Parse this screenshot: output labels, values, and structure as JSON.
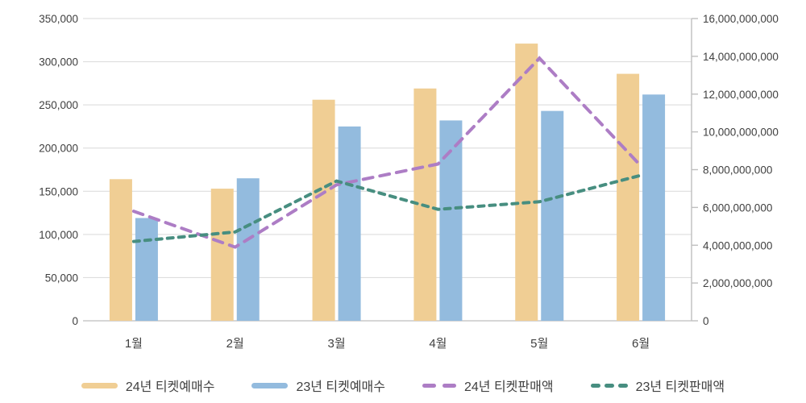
{
  "chart_data": {
    "type": "combo",
    "categories": [
      "1월",
      "2월",
      "3월",
      "4월",
      "5월",
      "6월"
    ],
    "series": [
      {
        "name": "24년 티켓예매수",
        "type": "bar",
        "axis": "left",
        "color": "#F0CE94",
        "values": [
          164000,
          153000,
          256000,
          269000,
          321000,
          286000
        ]
      },
      {
        "name": "23년 티켓예매수",
        "type": "bar",
        "axis": "left",
        "color": "#93BBDE",
        "values": [
          119000,
          165000,
          225000,
          232000,
          243000,
          262000
        ]
      },
      {
        "name": "24년 티켓판매액",
        "type": "line",
        "dash_style": "long",
        "axis": "right",
        "color": "#AD7DC5",
        "values": [
          5800000000,
          3900000000,
          7200000000,
          8300000000,
          13900000000,
          8200000000
        ]
      },
      {
        "name": "23년 티켓판매액",
        "type": "line",
        "dash_style": "short",
        "axis": "right",
        "color": "#478E80",
        "values": [
          4200000000,
          4700000000,
          7400000000,
          5900000000,
          6300000000,
          7700000000
        ]
      }
    ],
    "left_axis": {
      "min": 0,
      "max": 350000,
      "step": 50000,
      "tick_labels": [
        "350,000",
        "300,000",
        "250,000",
        "200,000",
        "150,000",
        "100,000",
        "50,000",
        "0"
      ]
    },
    "right_axis": {
      "min": 0,
      "max": 16000000000,
      "step": 2000000000,
      "tick_labels": [
        "16,000,000,000",
        "14,000,000,000",
        "12,000,000,000",
        "10,000,000,000",
        "8,000,000,000",
        "6,000,000,000",
        "4,000,000,000",
        "2,000,000,000",
        "0"
      ]
    },
    "grid": true,
    "legend_position": "bottom"
  },
  "colors": {
    "gridline": "#D9D9D9",
    "axis_line": "#BFBFBF",
    "bottom_axis_line": "#C9C9C9",
    "tick_text": "#404040"
  }
}
